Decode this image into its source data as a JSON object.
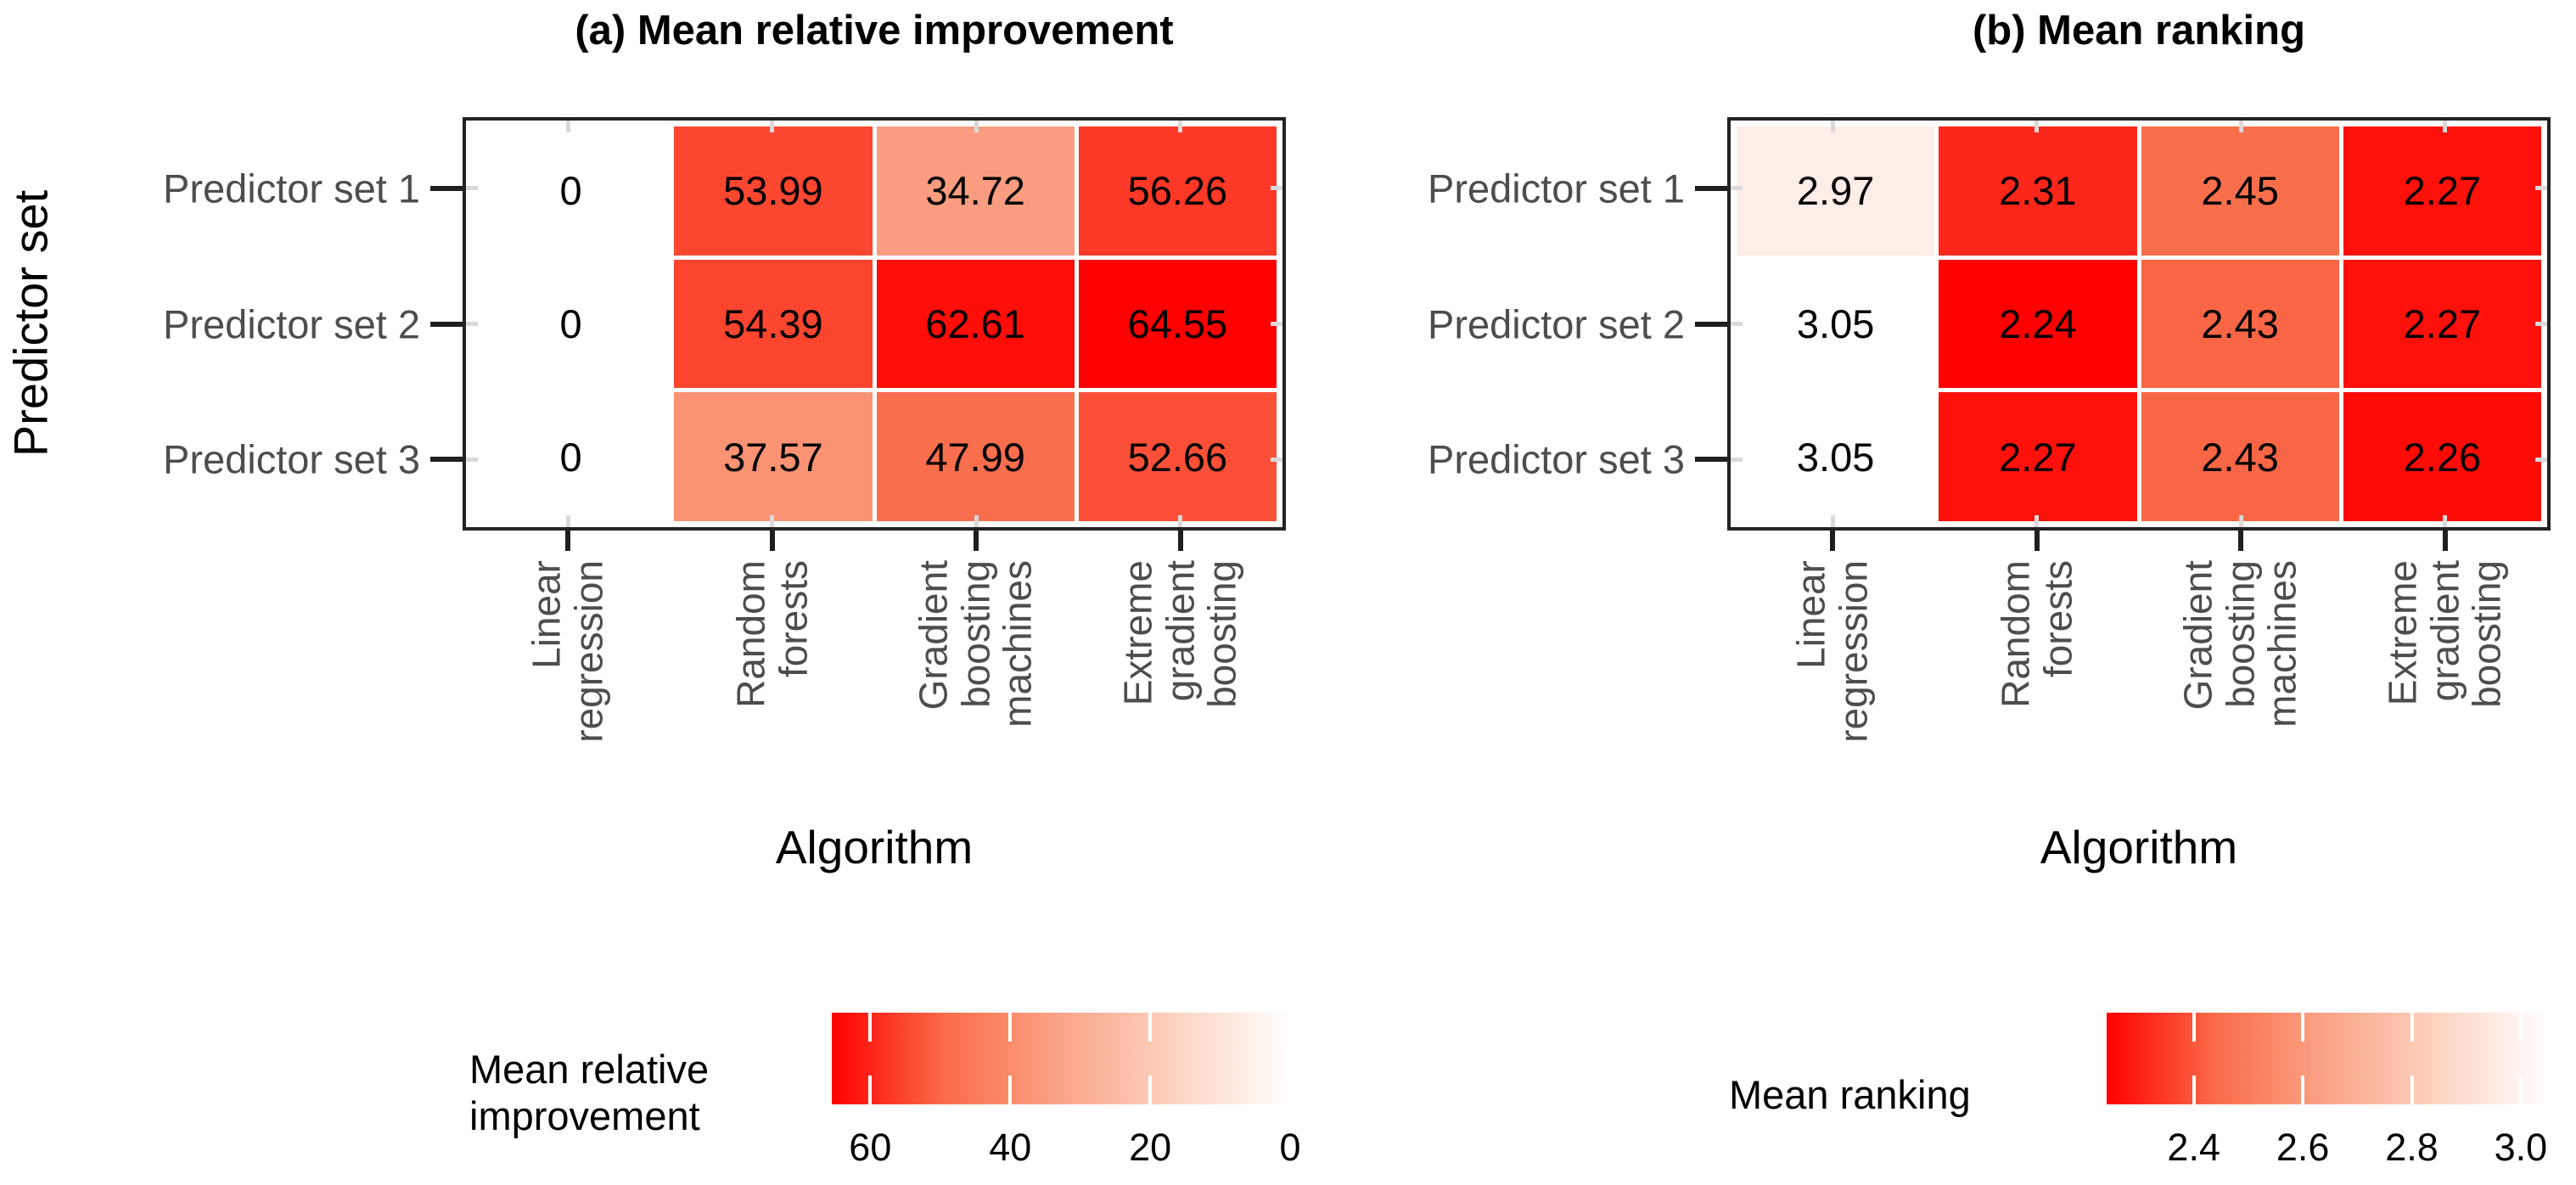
{
  "figure": {
    "background": "#ffffff"
  },
  "colors": {
    "ramp": [
      "#ffffff",
      "#fcd3c1",
      "#faa488",
      "#f96d4a",
      "#ff0000"
    ],
    "panel_border": "#222222",
    "axis_tick_black": "#1f1f1f",
    "axis_tick_gray": "#d9d9d9",
    "axis_label_gray": "#4d4d4d",
    "text_black": "#000000",
    "legend_tick_white": "#ffffff"
  },
  "chart_data": [
    {
      "type": "heatmap",
      "panel": "a",
      "title": "(a) Mean relative improvement",
      "xlabel": "Algorithm",
      "ylabel": "Predictor set",
      "rows": [
        "Predictor set 1",
        "Predictor set 2",
        "Predictor set 3"
      ],
      "columns": [
        "Linear\nregression",
        "Random\nforests",
        "Gradient\nboosting\nmachines",
        "Extreme\ngradient\nboosting"
      ],
      "values": [
        [
          0,
          53.99,
          34.72,
          56.26
        ],
        [
          0,
          54.39,
          62.61,
          64.55
        ],
        [
          0,
          37.57,
          47.99,
          52.66
        ]
      ],
      "color_domain": [
        0,
        64.55
      ],
      "red_at": "max",
      "grid": false,
      "legend": {
        "title": "Mean relative\nimprovement",
        "tick_labels": [
          "60",
          "40",
          "20",
          "0"
        ],
        "tick_values": [
          60,
          40,
          20,
          0
        ],
        "limits": [
          0,
          65.5
        ],
        "descending": true
      }
    },
    {
      "type": "heatmap",
      "panel": "b",
      "title": "(b) Mean ranking",
      "xlabel": "Algorithm",
      "ylabel": "",
      "rows": [
        "Predictor set 1",
        "Predictor set 2",
        "Predictor set 3"
      ],
      "columns": [
        "Linear\nregression",
        "Random\nforests",
        "Gradient\nboosting\nmachines",
        "Extreme\ngradient\nboosting"
      ],
      "values": [
        [
          2.97,
          2.31,
          2.45,
          2.27
        ],
        [
          3.05,
          2.24,
          2.43,
          2.27
        ],
        [
          3.05,
          2.27,
          2.43,
          2.26
        ]
      ],
      "color_domain": [
        2.24,
        3.05
      ],
      "red_at": "min",
      "grid": false,
      "legend": {
        "title": "Mean ranking",
        "tick_labels": [
          "2.4",
          "2.6",
          "2.8",
          "3.0"
        ],
        "tick_values": [
          2.4,
          2.6,
          2.8,
          3.0
        ],
        "limits": [
          2.24,
          3.05
        ],
        "descending": false
      }
    }
  ]
}
